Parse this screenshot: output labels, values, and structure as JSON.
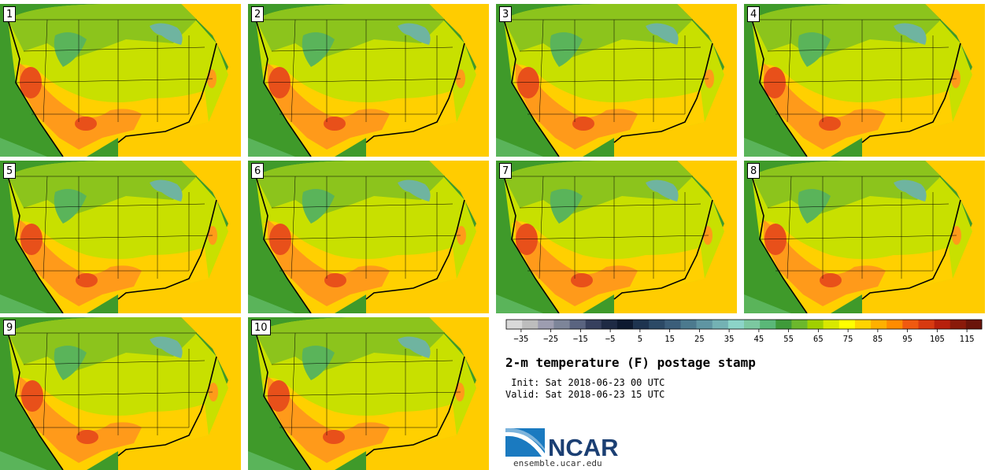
{
  "panels": [
    "1",
    "2",
    "3",
    "4",
    "5",
    "6",
    "7",
    "8",
    "9",
    "10"
  ],
  "colorbar": {
    "colors": [
      "#d9d9d9",
      "#bdbdbd",
      "#9d9db0",
      "#7d8599",
      "#5a6480",
      "#36405e",
      "#1e2a44",
      "#0e1a30",
      "#1e3450",
      "#2c4a66",
      "#3b5e7a",
      "#4c7a8e",
      "#5f95a2",
      "#74b2b4",
      "#8cd4c8",
      "#7cc8a0",
      "#5ab878",
      "#3f9a3a",
      "#6cb82c",
      "#a0d000",
      "#d8e800",
      "#ffff00",
      "#ffd400",
      "#ffb000",
      "#ff8c00",
      "#f05a10",
      "#d83a10",
      "#b8200c",
      "#8a1a0a",
      "#6a140a"
    ],
    "tick_labels": [
      "−35",
      "−25",
      "−15",
      "−5",
      "5",
      "15",
      "25",
      "35",
      "45",
      "55",
      "65",
      "75",
      "85",
      "95",
      "105",
      "115"
    ],
    "range": [
      -40,
      120
    ]
  },
  "title": "2-m temperature (F) postage stamp",
  "init_line": " Init: Sat 2018-06-23 00 UTC",
  "valid_line": "Valid: Sat 2018-06-23 15 UTC",
  "logo_text": "NCAR",
  "url": "ensemble.ucar.edu",
  "map_colors": {
    "ocean_west": "#3f9a2a",
    "ocean_east": "#ffcc00",
    "north": "#8cc41c",
    "central": "#c8e000",
    "south": "#ffd000",
    "hot": "#ff9a1a",
    "hottest": "#e8501a",
    "cool": "#5ab45a",
    "lake": "#6fb4a0",
    "border": "#000000"
  }
}
